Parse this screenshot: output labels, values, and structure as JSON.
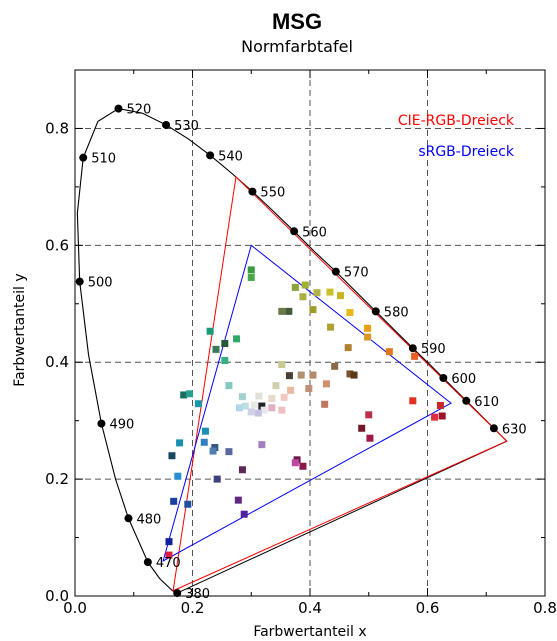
{
  "chart_data": {
    "type": "scatter",
    "title": "MSG",
    "subtitle": "Normfarbtafel",
    "xlabel": "Farbwertanteil x",
    "ylabel": "Farbwertanteil y",
    "xlim": [
      0.0,
      0.8
    ],
    "ylim": [
      0.0,
      0.9
    ],
    "xticks": [
      0.0,
      0.2,
      0.4,
      0.6,
      0.8
    ],
    "xtick_labels": [
      "0.0",
      "0.2",
      "0.4",
      "0.6",
      "0.8"
    ],
    "yticks": [
      0.0,
      0.2,
      0.4,
      0.6,
      0.8
    ],
    "ytick_labels": [
      "0.0",
      "0.2",
      "0.4",
      "0.6",
      "0.8"
    ],
    "grid": true,
    "legend": [
      {
        "label": "CIE-RGB-Dreieck",
        "color": "#ff0000"
      },
      {
        "label": "sRGB-Dreieck",
        "color": "#0000ff"
      }
    ],
    "spectral_locus": [
      [
        0.174,
        0.005
      ],
      [
        0.166,
        0.009
      ],
      [
        0.144,
        0.03
      ],
      [
        0.124,
        0.058
      ],
      [
        0.091,
        0.133
      ],
      [
        0.069,
        0.2
      ],
      [
        0.045,
        0.295
      ],
      [
        0.023,
        0.413
      ],
      [
        0.008,
        0.538
      ],
      [
        0.004,
        0.655
      ],
      [
        0.014,
        0.75
      ],
      [
        0.039,
        0.812
      ],
      [
        0.074,
        0.834
      ],
      [
        0.115,
        0.826
      ],
      [
        0.155,
        0.806
      ],
      [
        0.193,
        0.782
      ],
      [
        0.23,
        0.754
      ],
      [
        0.266,
        0.724
      ],
      [
        0.302,
        0.692
      ],
      [
        0.337,
        0.659
      ],
      [
        0.373,
        0.624
      ],
      [
        0.408,
        0.589
      ],
      [
        0.444,
        0.555
      ],
      [
        0.479,
        0.52
      ],
      [
        0.512,
        0.487
      ],
      [
        0.544,
        0.455
      ],
      [
        0.575,
        0.424
      ],
      [
        0.603,
        0.397
      ],
      [
        0.627,
        0.373
      ],
      [
        0.648,
        0.352
      ],
      [
        0.666,
        0.334
      ],
      [
        0.681,
        0.319
      ],
      [
        0.692,
        0.308
      ],
      [
        0.713,
        0.287
      ],
      [
        0.735,
        0.265
      ]
    ],
    "wavelength_points": [
      {
        "label": "380",
        "x": 0.174,
        "y": 0.005
      },
      {
        "label": "470",
        "x": 0.124,
        "y": 0.058
      },
      {
        "label": "480",
        "x": 0.091,
        "y": 0.133
      },
      {
        "label": "490",
        "x": 0.045,
        "y": 0.295
      },
      {
        "label": "500",
        "x": 0.008,
        "y": 0.538
      },
      {
        "label": "510",
        "x": 0.014,
        "y": 0.75
      },
      {
        "label": "520",
        "x": 0.074,
        "y": 0.834
      },
      {
        "label": "530",
        "x": 0.155,
        "y": 0.806
      },
      {
        "label": "540",
        "x": 0.23,
        "y": 0.754
      },
      {
        "label": "550",
        "x": 0.302,
        "y": 0.692
      },
      {
        "label": "560",
        "x": 0.373,
        "y": 0.624
      },
      {
        "label": "570",
        "x": 0.444,
        "y": 0.555
      },
      {
        "label": "580",
        "x": 0.512,
        "y": 0.487
      },
      {
        "label": "590",
        "x": 0.575,
        "y": 0.424
      },
      {
        "label": "600",
        "x": 0.627,
        "y": 0.373
      },
      {
        "label": "610",
        "x": 0.666,
        "y": 0.334
      },
      {
        "label": "630",
        "x": 0.713,
        "y": 0.287
      }
    ],
    "cie_rgb_triangle": [
      [
        0.735,
        0.265
      ],
      [
        0.274,
        0.717
      ],
      [
        0.167,
        0.009
      ]
    ],
    "srgb_triangle": [
      [
        0.64,
        0.33
      ],
      [
        0.3,
        0.6
      ],
      [
        0.15,
        0.06
      ]
    ],
    "color_samples": [
      {
        "x": 0.3,
        "y": 0.558,
        "c": "#3c9a3c"
      },
      {
        "x": 0.3,
        "y": 0.545,
        "c": "#4aa84a"
      },
      {
        "x": 0.375,
        "y": 0.528,
        "c": "#8aa43c"
      },
      {
        "x": 0.392,
        "y": 0.532,
        "c": "#a0b030"
      },
      {
        "x": 0.412,
        "y": 0.519,
        "c": "#b0b440"
      },
      {
        "x": 0.388,
        "y": 0.512,
        "c": "#a8b046"
      },
      {
        "x": 0.434,
        "y": 0.52,
        "c": "#c8c02c"
      },
      {
        "x": 0.452,
        "y": 0.514,
        "c": "#c8b422"
      },
      {
        "x": 0.405,
        "y": 0.49,
        "c": "#a09c2a"
      },
      {
        "x": 0.352,
        "y": 0.487,
        "c": "#6a7a46"
      },
      {
        "x": 0.364,
        "y": 0.487,
        "c": "#485838"
      },
      {
        "x": 0.468,
        "y": 0.485,
        "c": "#e8b818"
      },
      {
        "x": 0.435,
        "y": 0.46,
        "c": "#b0a030"
      },
      {
        "x": 0.498,
        "y": 0.458,
        "c": "#e8a010"
      },
      {
        "x": 0.498,
        "y": 0.443,
        "c": "#d89828"
      },
      {
        "x": 0.465,
        "y": 0.425,
        "c": "#b08030"
      },
      {
        "x": 0.535,
        "y": 0.418,
        "c": "#e07818"
      },
      {
        "x": 0.578,
        "y": 0.41,
        "c": "#e86028"
      },
      {
        "x": 0.23,
        "y": 0.453,
        "c": "#1a9a78"
      },
      {
        "x": 0.275,
        "y": 0.44,
        "c": "#30a868"
      },
      {
        "x": 0.255,
        "y": 0.432,
        "c": "#28583a"
      },
      {
        "x": 0.24,
        "y": 0.422,
        "c": "#3a7a5a"
      },
      {
        "x": 0.255,
        "y": 0.403,
        "c": "#36b080"
      },
      {
        "x": 0.352,
        "y": 0.396,
        "c": "#c8c890"
      },
      {
        "x": 0.442,
        "y": 0.393,
        "c": "#8a6a48"
      },
      {
        "x": 0.365,
        "y": 0.377,
        "c": "#484030"
      },
      {
        "x": 0.385,
        "y": 0.378,
        "c": "#b08e70"
      },
      {
        "x": 0.405,
        "y": 0.378,
        "c": "#b08a6a"
      },
      {
        "x": 0.468,
        "y": 0.38,
        "c": "#785030"
      },
      {
        "x": 0.475,
        "y": 0.378,
        "c": "#5a3818"
      },
      {
        "x": 0.428,
        "y": 0.363,
        "c": "#d09070"
      },
      {
        "x": 0.262,
        "y": 0.36,
        "c": "#80c8c0"
      },
      {
        "x": 0.342,
        "y": 0.36,
        "c": "#d0d0b0"
      },
      {
        "x": 0.367,
        "y": 0.352,
        "c": "#e8b8a0"
      },
      {
        "x": 0.398,
        "y": 0.355,
        "c": "#c09078"
      },
      {
        "x": 0.185,
        "y": 0.344,
        "c": "#1a7060"
      },
      {
        "x": 0.195,
        "y": 0.346,
        "c": "#28a090"
      },
      {
        "x": 0.285,
        "y": 0.341,
        "c": "#a0d0d0"
      },
      {
        "x": 0.313,
        "y": 0.342,
        "c": "#e0e0d8"
      },
      {
        "x": 0.356,
        "y": 0.34,
        "c": "#f0c8c0"
      },
      {
        "x": 0.335,
        "y": 0.338,
        "c": "#e8d8c8"
      },
      {
        "x": 0.21,
        "y": 0.329,
        "c": "#1898a8"
      },
      {
        "x": 0.305,
        "y": 0.327,
        "c": "#e8e8e8"
      },
      {
        "x": 0.318,
        "y": 0.325,
        "c": "#222222"
      },
      {
        "x": 0.29,
        "y": 0.325,
        "c": "#c0e0e0"
      },
      {
        "x": 0.425,
        "y": 0.328,
        "c": "#c07860"
      },
      {
        "x": 0.335,
        "y": 0.322,
        "c": "#e0b0c0"
      },
      {
        "x": 0.322,
        "y": 0.318,
        "c": "#e8e8f0"
      },
      {
        "x": 0.28,
        "y": 0.322,
        "c": "#b0d8e8"
      },
      {
        "x": 0.352,
        "y": 0.318,
        "c": "#f0c0c0"
      },
      {
        "x": 0.3,
        "y": 0.315,
        "c": "#d0d0e8"
      },
      {
        "x": 0.312,
        "y": 0.313,
        "c": "#c8c0e0"
      },
      {
        "x": 0.575,
        "y": 0.334,
        "c": "#e03020"
      },
      {
        "x": 0.622,
        "y": 0.326,
        "c": "#c82828"
      },
      {
        "x": 0.612,
        "y": 0.306,
        "c": "#e03040"
      },
      {
        "x": 0.625,
        "y": 0.308,
        "c": "#a01028"
      },
      {
        "x": 0.5,
        "y": 0.31,
        "c": "#b83048"
      },
      {
        "x": 0.488,
        "y": 0.287,
        "c": "#701828"
      },
      {
        "x": 0.502,
        "y": 0.27,
        "c": "#a01848"
      },
      {
        "x": 0.222,
        "y": 0.282,
        "c": "#1890b8"
      },
      {
        "x": 0.22,
        "y": 0.263,
        "c": "#3080c0"
      },
      {
        "x": 0.178,
        "y": 0.262,
        "c": "#1a90b0"
      },
      {
        "x": 0.238,
        "y": 0.254,
        "c": "#305880"
      },
      {
        "x": 0.235,
        "y": 0.248,
        "c": "#5080b0"
      },
      {
        "x": 0.262,
        "y": 0.247,
        "c": "#5868a0"
      },
      {
        "x": 0.318,
        "y": 0.259,
        "c": "#a080c0"
      },
      {
        "x": 0.165,
        "y": 0.24,
        "c": "#184860"
      },
      {
        "x": 0.378,
        "y": 0.233,
        "c": "#6a1848"
      },
      {
        "x": 0.375,
        "y": 0.228,
        "c": "#c048a0"
      },
      {
        "x": 0.388,
        "y": 0.222,
        "c": "#8a1848"
      },
      {
        "x": 0.285,
        "y": 0.216,
        "c": "#602858"
      },
      {
        "x": 0.175,
        "y": 0.205,
        "c": "#2890d0"
      },
      {
        "x": 0.242,
        "y": 0.2,
        "c": "#404080"
      },
      {
        "x": 0.192,
        "y": 0.157,
        "c": "#2050a0"
      },
      {
        "x": 0.168,
        "y": 0.162,
        "c": "#1840a0"
      },
      {
        "x": 0.278,
        "y": 0.164,
        "c": "#602880"
      },
      {
        "x": 0.288,
        "y": 0.14,
        "c": "#5020a0"
      },
      {
        "x": 0.16,
        "y": 0.093,
        "c": "#1020a0"
      },
      {
        "x": 0.16,
        "y": 0.07,
        "c": "#e02040"
      }
    ]
  }
}
